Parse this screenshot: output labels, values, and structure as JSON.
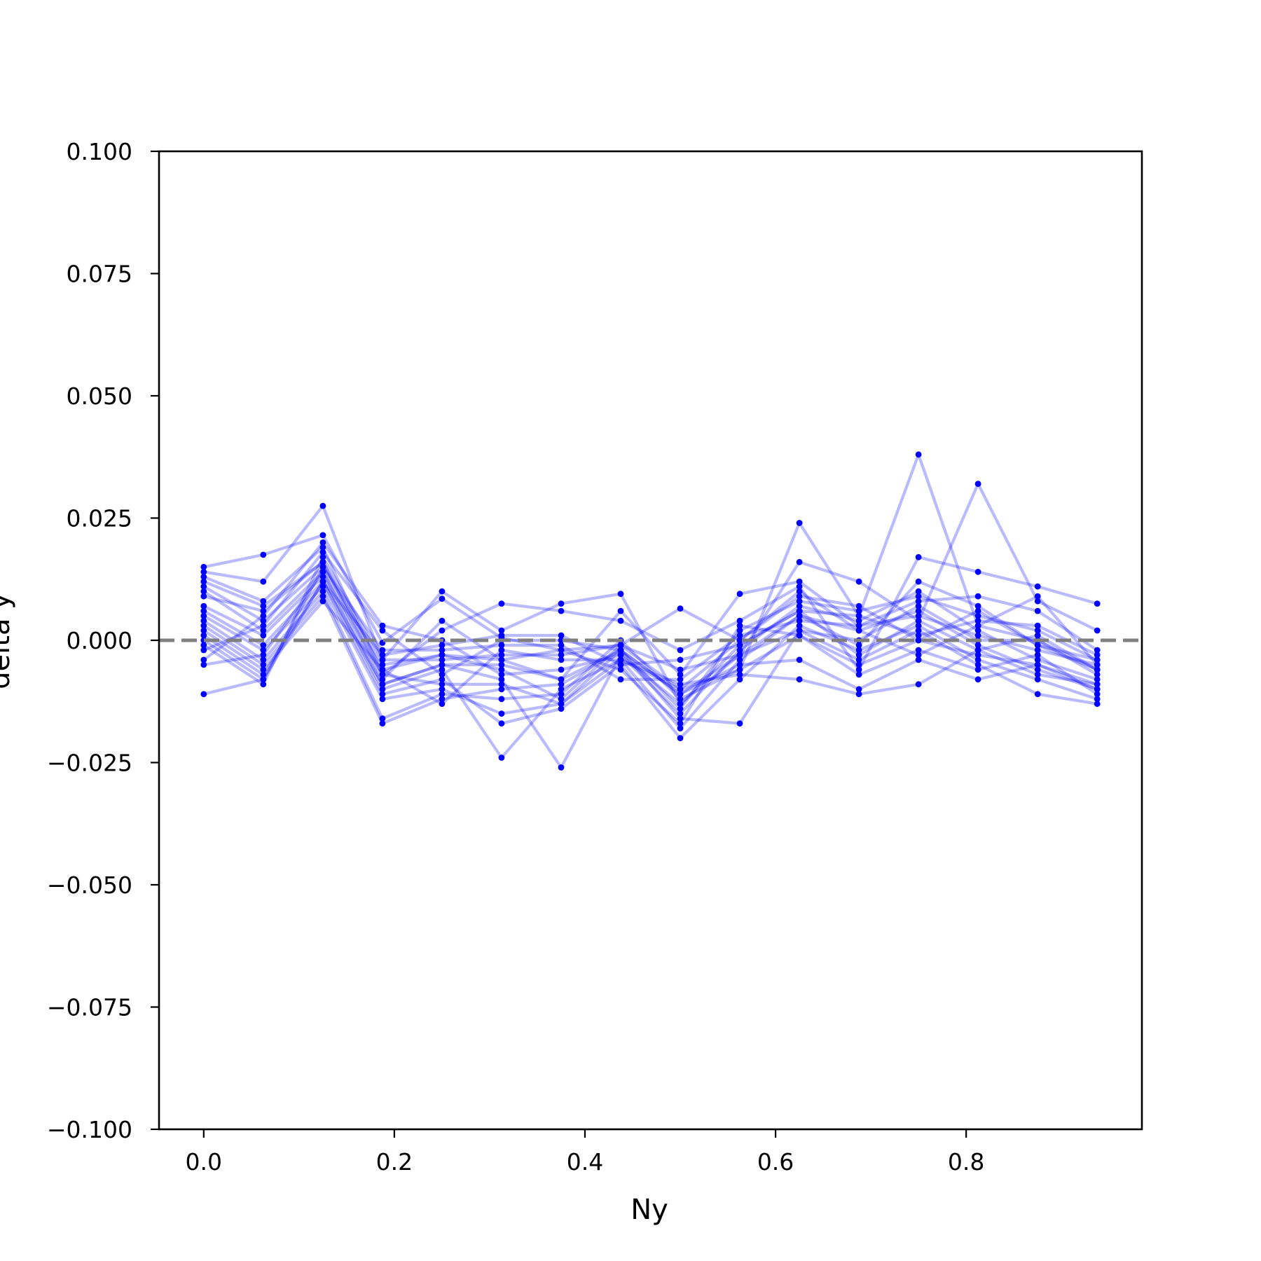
{
  "chart_data": {
    "type": "line",
    "title": "",
    "xlabel": "Ny",
    "ylabel": "delta y",
    "xlim": [
      -0.0469,
      0.9844
    ],
    "ylim": [
      -0.1,
      0.1
    ],
    "xticks": [
      0.0,
      0.2,
      0.4,
      0.6,
      0.8
    ],
    "xtick_labels": [
      "0.0",
      "0.2",
      "0.4",
      "0.6",
      "0.8"
    ],
    "yticks": [
      0.1,
      0.075,
      0.05,
      0.025,
      0.0,
      -0.025,
      -0.05,
      -0.075,
      -0.1
    ],
    "ytick_labels": [
      "0.100",
      "0.075",
      "0.050",
      "0.025",
      "0.000",
      "−0.025",
      "−0.050",
      "−0.075",
      "−0.100"
    ],
    "grid": false,
    "reference_line": {
      "y": 0.0,
      "style": "dashed",
      "color": "#808080"
    },
    "series_color": "#0000ff",
    "x": [
      0.0,
      0.0625,
      0.125,
      0.1875,
      0.25,
      0.3125,
      0.375,
      0.4375,
      0.5,
      0.5625,
      0.625,
      0.6875,
      0.75,
      0.8125,
      0.875,
      0.9375
    ],
    "series": [
      {
        "values": [
          0.015,
          0.0175,
          0.0215,
          -0.0005,
          0.0085,
          0.0005,
          -0.002,
          -0.001,
          -0.01,
          -0.006,
          0.024,
          0.005,
          0.038,
          0.003,
          0.0,
          -0.006
        ]
      },
      {
        "values": [
          0.014,
          0.012,
          0.0275,
          -0.004,
          0.01,
          0.002,
          0.0075,
          0.0095,
          -0.013,
          -0.003,
          0.016,
          0.012,
          0.004,
          0.032,
          0.008,
          0.002
        ]
      },
      {
        "values": [
          0.013,
          0.008,
          0.019,
          -0.007,
          0.002,
          0.0075,
          0.006,
          0.004,
          -0.002,
          0.004,
          0.011,
          -0.006,
          0.017,
          0.014,
          0.011,
          0.0075
        ]
      },
      {
        "values": [
          0.012,
          0.007,
          0.016,
          -0.008,
          0.004,
          -0.004,
          -0.008,
          0.006,
          -0.007,
          0.0095,
          0.012,
          0.003,
          0.008,
          0.009,
          0.006,
          -0.002
        ]
      },
      {
        "values": [
          0.011,
          0.004,
          0.015,
          -0.005,
          -0.003,
          -0.006,
          -0.012,
          -0.001,
          0.0065,
          0.0,
          0.009,
          0.007,
          0.0,
          0.006,
          -0.001,
          -0.004
        ]
      },
      {
        "values": [
          0.01,
          0.002,
          0.014,
          -0.009,
          -0.005,
          -0.008,
          -0.026,
          -0.003,
          -0.015,
          -0.002,
          0.007,
          0.004,
          0.01,
          0.002,
          -0.004,
          -0.008
        ]
      },
      {
        "values": [
          0.007,
          0.001,
          0.013,
          -0.01,
          -0.006,
          -0.024,
          -0.01,
          -0.004,
          -0.018,
          -0.004,
          0.005,
          0.002,
          0.006,
          -0.001,
          -0.006,
          -0.01
        ]
      },
      {
        "values": [
          0.006,
          -0.001,
          0.012,
          -0.011,
          -0.008,
          -0.017,
          -0.014,
          -0.005,
          -0.02,
          -0.008,
          0.003,
          -0.002,
          0.003,
          -0.004,
          -0.008,
          -0.012
        ]
      },
      {
        "values": [
          0.005,
          -0.002,
          0.011,
          -0.012,
          -0.01,
          -0.015,
          -0.013,
          -0.002,
          -0.016,
          -0.017,
          0.002,
          -0.004,
          0.002,
          -0.005,
          -0.011,
          -0.013
        ]
      },
      {
        "values": [
          0.004,
          -0.004,
          0.01,
          -0.016,
          -0.011,
          -0.012,
          -0.011,
          0.0,
          -0.012,
          -0.006,
          0.001,
          -0.007,
          -0.002,
          -0.006,
          -0.003,
          -0.011
        ]
      },
      {
        "values": [
          0.003,
          -0.005,
          0.009,
          -0.017,
          -0.012,
          -0.01,
          -0.009,
          -0.002,
          -0.011,
          -0.005,
          -0.004,
          -0.01,
          -0.004,
          -0.008,
          -0.005,
          -0.009
        ]
      },
      {
        "values": [
          0.002,
          -0.006,
          0.008,
          -0.006,
          -0.013,
          -0.002,
          -0.004,
          -0.004,
          -0.009,
          -0.007,
          -0.008,
          -0.011,
          -0.009,
          -0.002,
          0.001,
          -0.006
        ]
      },
      {
        "values": [
          0.001,
          -0.007,
          0.012,
          -0.003,
          -0.001,
          0.001,
          0.001,
          -0.005,
          -0.004,
          -0.001,
          0.006,
          0.005,
          0.001,
          0.004,
          0.003,
          -0.003
        ]
      },
      {
        "values": [
          0.0,
          -0.008,
          0.015,
          -0.002,
          -0.002,
          -0.001,
          -0.001,
          -0.008,
          -0.008,
          0.001,
          0.004,
          0.003,
          0.005,
          0.001,
          -0.002,
          -0.005
        ]
      },
      {
        "values": [
          -0.001,
          -0.009,
          0.017,
          -0.004,
          -0.004,
          -0.003,
          -0.003,
          -0.001,
          -0.006,
          -0.003,
          0.002,
          0.0,
          0.007,
          0.0,
          0.0,
          -0.007
        ]
      },
      {
        "values": [
          -0.002,
          0.003,
          0.018,
          0.002,
          -0.007,
          0.0,
          0.0,
          -0.002,
          -0.014,
          0.002,
          0.008,
          0.006,
          0.009,
          0.005,
          0.002,
          -0.004
        ]
      },
      {
        "values": [
          -0.004,
          0.005,
          0.02,
          0.003,
          0.0,
          -0.007,
          -0.006,
          -0.003,
          -0.013,
          -0.001,
          0.006,
          -0.003,
          0.004,
          -0.002,
          -0.007,
          -0.009
        ]
      },
      {
        "values": [
          -0.005,
          -0.003,
          0.014,
          -0.007,
          -0.009,
          -0.009,
          -0.013,
          -0.004,
          -0.01,
          0.0,
          0.01,
          0.002,
          -0.003,
          0.003,
          0.009,
          -0.005
        ]
      },
      {
        "values": [
          -0.011,
          -0.008,
          0.012,
          -0.009,
          -0.005,
          -0.005,
          -0.008,
          -0.002,
          -0.011,
          -0.003,
          0.005,
          -0.001,
          0.012,
          0.007,
          -0.001,
          -0.006
        ]
      },
      {
        "values": [
          0.009,
          0.006,
          0.016,
          -0.006,
          -0.003,
          -0.004,
          -0.002,
          -0.006,
          -0.017,
          0.003,
          0.001,
          -0.005,
          0.0,
          -0.003,
          -0.005,
          -0.01
        ]
      }
    ]
  }
}
